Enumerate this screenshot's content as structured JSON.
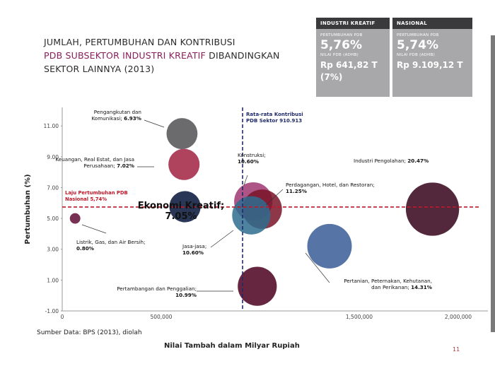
{
  "title": {
    "line1": "JUMLAH, PERTUMBUHAN DAN KONTRIBUSI",
    "highlight": "PDB SUBSEKTOR INDUSTRI KREATIF",
    "rest": " DIBANDINGKAN SEKTOR LAINNYA (2013)"
  },
  "panels": {
    "kreatif": {
      "header": "INDUSTRI KREATIF",
      "growth_label": "PERTUMBUHAN PDB",
      "growth": "5,76%",
      "pdb_label": "NILAI PDB (ADHB)",
      "pdb": "Rp 641,82 T (7%)"
    },
    "nasional": {
      "header": "NASIONAL",
      "growth_label": "PERTUMBUHAN PDB",
      "growth": "5,74%",
      "pdb_label": "NILAI PDB (ADHB)",
      "pdb": "Rp 9.109,12 T"
    }
  },
  "source": "Sumber Data: BPS (2013), diolah",
  "page_number": "11",
  "colors": {
    "avg_line": "#1f2a6b",
    "national_line": "#c0182a",
    "panel_bg": "#a8a8aa",
    "panel_header": "#3a3a3c"
  },
  "chart_data": {
    "type": "bubble",
    "xlabel": "Nilai Tambah dalam Milyar Rupiah",
    "ylabel": "Pertumbuhan (%)",
    "xlim": [
      0,
      2150000
    ],
    "ylim": [
      -1.0,
      12.2
    ],
    "x_ticks": [
      0,
      500000,
      1000000,
      1500000,
      2000000
    ],
    "x_tick_labels": [
      "0",
      "500,000",
      "",
      "1,500,000",
      "2,000,000"
    ],
    "y_ticks": [
      -1,
      1,
      3,
      5,
      7,
      9,
      11
    ],
    "y_tick_labels": [
      "-1.00",
      "1.00",
      "3.00",
      "5.00",
      "7.00",
      "9.00",
      "11.00"
    ],
    "avg_line": {
      "x": 910913,
      "label": "Rata-rata Kontribusi PDB Sektor 910.913"
    },
    "national_line": {
      "y": 5.74,
      "label": "Laju Pertumbuhan PDB Nasional 5,74%"
    },
    "points": [
      {
        "name": "Pengangkutan dan Komunikasi",
        "x": 605000,
        "y": 10.5,
        "size": 6.93,
        "color": "#5e5e62",
        "alpha": 0.92,
        "label": [
          "Pengangkutan dan",
          "Komunikasi; 6.93%"
        ]
      },
      {
        "name": "Keuangan, Real Estat, dan Jasa Perusahaan",
        "x": 615000,
        "y": 8.5,
        "size": 7.02,
        "color": "#a62e4a",
        "alpha": 0.9,
        "label": [
          "Keuangan, Real Estat, dan Jasa",
          "Perusahaan; 7.02%"
        ]
      },
      {
        "name": "Ekonomi Kreatif",
        "x": 620000,
        "y": 5.76,
        "size": 7.05,
        "color": "#1d2b4c",
        "alpha": 0.95,
        "label": [
          "Ekonomi Kreatif;",
          "7.05%"
        ]
      },
      {
        "name": "Listrik, Gas, dan Air Bersih",
        "x": 65000,
        "y": 5.0,
        "size": 0.8,
        "color": "#6b1e42",
        "alpha": 0.92,
        "label": [
          "Listrik, Gas, dan Air Bersih;",
          "0.80%"
        ]
      },
      {
        "name": "Konstruksi",
        "x": 965000,
        "y": 6.1,
        "size": 10.6,
        "color": "#9a2a6a",
        "alpha": 0.8,
        "label": [
          "Konstruksi;",
          "10.60%"
        ]
      },
      {
        "name": "Perdagangan, Hotel, dan Restoran",
        "x": 1010000,
        "y": 5.6,
        "size": 11.25,
        "color": "#7a1428",
        "alpha": 0.85,
        "label": [
          "Perdagangan, Hotel, dan Restoran;",
          "11.25%"
        ]
      },
      {
        "name": "Jasa-jasa",
        "x": 955000,
        "y": 5.2,
        "size": 10.6,
        "color": "#2e6d8e",
        "alpha": 0.85,
        "label": [
          "Jasa-jasa;",
          "10.60%"
        ]
      },
      {
        "name": "Industri Pengolahan",
        "x": 1870000,
        "y": 5.6,
        "size": 20.47,
        "color": "#4a1c32",
        "alpha": 0.95,
        "label": [
          "Industri Pengolahan; 20.47%"
        ]
      },
      {
        "name": "Pertanian, Peternakan, Kehutanan, dan Perikanan",
        "x": 1350000,
        "y": 3.2,
        "size": 14.31,
        "color": "#4d6da0",
        "alpha": 0.95,
        "label": [
          "Pertanian, Peternakan, Kehutanan,",
          "dan Perikanan; 14.31%"
        ]
      },
      {
        "name": "Pertambangan dan Penggalian",
        "x": 985000,
        "y": 0.6,
        "size": 10.99,
        "color": "#5e1a36",
        "alpha": 0.95,
        "label": [
          "Pertambangan dan Penggalian;",
          "10.99%"
        ]
      }
    ]
  }
}
